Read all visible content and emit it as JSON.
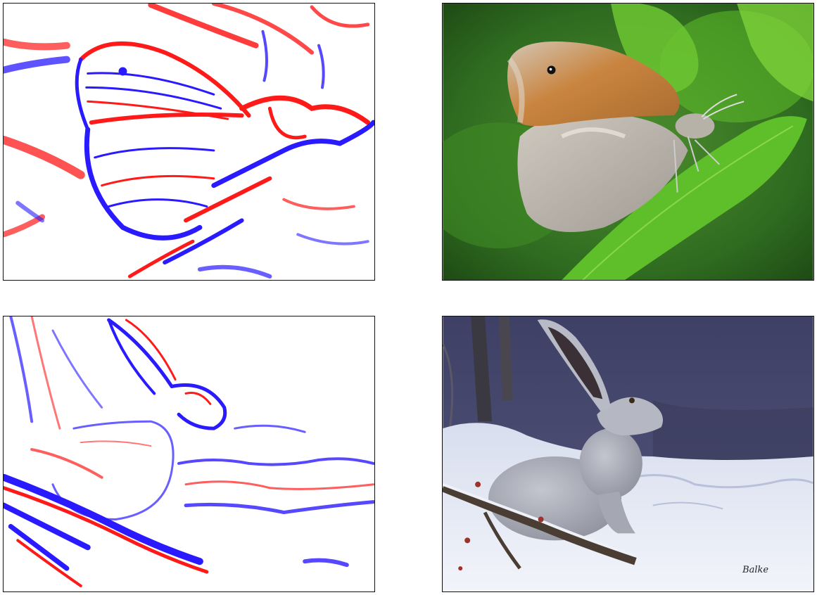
{
  "panels": [
    {
      "id": "edge-map-butterfly",
      "kind": "edge-map",
      "subject": "butterfly"
    },
    {
      "id": "photo-butterfly",
      "kind": "photograph",
      "subject": "butterfly"
    },
    {
      "id": "edge-map-hare",
      "kind": "edge-map",
      "subject": "hare"
    },
    {
      "id": "painting-hare",
      "kind": "painting",
      "subject": "hare"
    }
  ],
  "painting_signature": "Balke",
  "colors": {
    "edge_positive": "#ff1a1a",
    "edge_negative": "#2a1aff",
    "border": "#111111",
    "leaf_green": "#5fbf2a",
    "background_green": "#2f6b20",
    "wing_orange": "#c9843f",
    "wing_gray": "#bdb7ae",
    "snow": "#e8ecf5",
    "night_sky": "#4a4c72",
    "hare_gray": "#a7a9b4"
  }
}
